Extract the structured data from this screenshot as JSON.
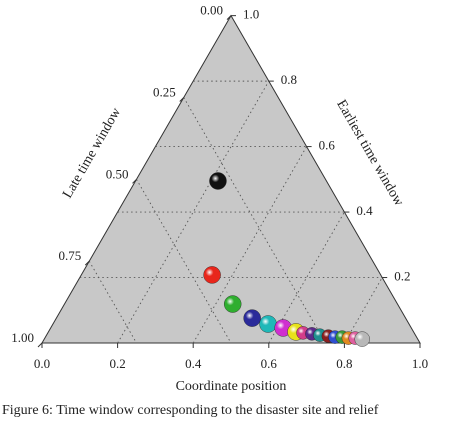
{
  "chart_data": {
    "type": "ternary",
    "caption": "Figure 6: Time window corresponding to the disaster site and relief",
    "bottom_axis": {
      "label": "Coordinate position",
      "ticks": [
        {
          "value": 0,
          "label": "0.0"
        },
        0.2,
        0.4,
        0.6,
        0.8,
        {
          "value": 1,
          "label": "1.0"
        }
      ]
    },
    "right_axis": {
      "label": "Earliest time window",
      "ticks": [
        0.2,
        0.4,
        0.6,
        0.8,
        {
          "value": 1,
          "label": "1.0"
        }
      ]
    },
    "left_axis": {
      "label": "Late time window",
      "ticks": [
        {
          "value": 0,
          "label": "0.00"
        },
        {
          "value": 0.25,
          "label": "0.25"
        },
        {
          "value": 0.5,
          "label": "0.50"
        },
        {
          "value": 0.75,
          "label": "0.75"
        },
        {
          "value": 1,
          "label": "1.00"
        }
      ]
    },
    "grid": true,
    "background": "#c8c8c8",
    "coordinate": [
      0.218,
      0.346,
      0.445,
      0.518,
      0.569,
      0.615,
      0.655,
      0.675,
      0.7,
      0.723,
      0.747,
      0.766,
      0.785,
      0.803,
      0.821,
      0.841
    ],
    "earliest": [
      0.495,
      0.208,
      0.119,
      0.076,
      0.058,
      0.046,
      0.034,
      0.031,
      0.028,
      0.024,
      0.021,
      0.018,
      0.018,
      0.015,
      0.015,
      0.012
    ],
    "late": [
      0.287,
      0.446,
      0.436,
      0.406,
      0.373,
      0.339,
      0.311,
      0.294,
      0.272,
      0.253,
      0.232,
      0.216,
      0.197,
      0.182,
      0.164,
      0.147
    ],
    "colors": [
      "#111111",
      "#e8261b",
      "#2fae2f",
      "#2a2a9a",
      "#1fb8b8",
      "#d02fd0",
      "#e8e21a",
      "#d23d8a",
      "#5a2a8a",
      "#1f8f8f",
      "#8a1f1f",
      "#2f4fd0",
      "#3a9a3a",
      "#e08a1f",
      "#e05f9f",
      "#b8b8b8"
    ]
  }
}
